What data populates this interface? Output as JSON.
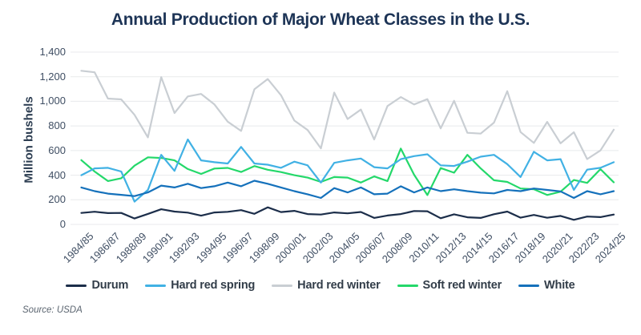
{
  "page": {
    "background": "#ffffff"
  },
  "chart_data": {
    "type": "line",
    "title": "Annual Production of Major Wheat Classes in the U.S.",
    "ylabel": "Million bushels",
    "source_note": "Source: USDA",
    "ylim": [
      0,
      1400
    ],
    "ytick_interval": 200,
    "ytick_labels": [
      "0",
      "200",
      "400",
      "600",
      "800",
      "1,000",
      "1,200",
      "1,400"
    ],
    "grid": "horizontal",
    "gridline_color": "#e8eaec",
    "legend_position": "bottom",
    "xtick_every": 2,
    "categories": [
      "1984/85",
      "1985/86",
      "1986/87",
      "1987/88",
      "1988/89",
      "1989/90",
      "1990/91",
      "1991/92",
      "1992/93",
      "1993/94",
      "1994/95",
      "1995/96",
      "1996/97",
      "1997/98",
      "1998/99",
      "1999/00",
      "2000/01",
      "2001/02",
      "2002/03",
      "2003/04",
      "2004/05",
      "2005/06",
      "2006/07",
      "2007/08",
      "2008/09",
      "2009/10",
      "2010/11",
      "2011/12",
      "2012/13",
      "2013/14",
      "2014/15",
      "2015/16",
      "2016/17",
      "2017/18",
      "2018/19",
      "2019/20",
      "2020/21",
      "2021/22",
      "2022/23",
      "2023/24",
      "2024/25"
    ],
    "series": [
      {
        "name": "Durum",
        "color": "#1c2e4a",
        "values": [
          93,
          103,
          92,
          93,
          48,
          85,
          123,
          104,
          96,
          71,
          97,
          102,
          116,
          86,
          139,
          100,
          110,
          84,
          80,
          97,
          90,
          101,
          53,
          72,
          84,
          109,
          107,
          50,
          82,
          58,
          53,
          83,
          104,
          55,
          77,
          54,
          69,
          37,
          64,
          59,
          80
        ]
      },
      {
        "name": "Hard red spring",
        "color": "#41b1e4",
        "values": [
          400,
          455,
          460,
          430,
          185,
          280,
          565,
          435,
          690,
          520,
          505,
          495,
          630,
          495,
          485,
          460,
          510,
          480,
          340,
          500,
          520,
          535,
          465,
          455,
          530,
          555,
          570,
          480,
          475,
          510,
          550,
          565,
          490,
          385,
          590,
          520,
          530,
          280,
          445,
          460,
          505
        ]
      },
      {
        "name": "Hard red winter",
        "color": "#c9ced3",
        "values": [
          1248,
          1236,
          1022,
          1016,
          890,
          707,
          1196,
          905,
          1040,
          1060,
          975,
          835,
          759,
          1098,
          1181,
          1050,
          844,
          767,
          618,
          1071,
          856,
          933,
          690,
          962,
          1035,
          975,
          1018,
          780,
          1004,
          744,
          738,
          827,
          1082,
          750,
          662,
          833,
          659,
          749,
          531,
          601,
          770
        ]
      },
      {
        "name": "Soft red winter",
        "color": "#24d86a",
        "values": [
          522,
          430,
          352,
          375,
          477,
          545,
          540,
          520,
          450,
          410,
          454,
          459,
          426,
          474,
          444,
          425,
          400,
          380,
          345,
          385,
          380,
          340,
          390,
          352,
          616,
          404,
          238,
          458,
          420,
          565,
          455,
          359,
          345,
          292,
          286,
          239,
          266,
          361,
          337,
          449,
          342
        ]
      },
      {
        "name": "White",
        "color": "#1571bb",
        "values": [
          300,
          270,
          250,
          240,
          230,
          260,
          315,
          300,
          330,
          295,
          310,
          340,
          310,
          355,
          330,
          300,
          270,
          245,
          215,
          295,
          260,
          300,
          245,
          250,
          310,
          260,
          300,
          270,
          285,
          270,
          258,
          252,
          280,
          270,
          292,
          280,
          268,
          215,
          270,
          245,
          270
        ]
      }
    ]
  }
}
